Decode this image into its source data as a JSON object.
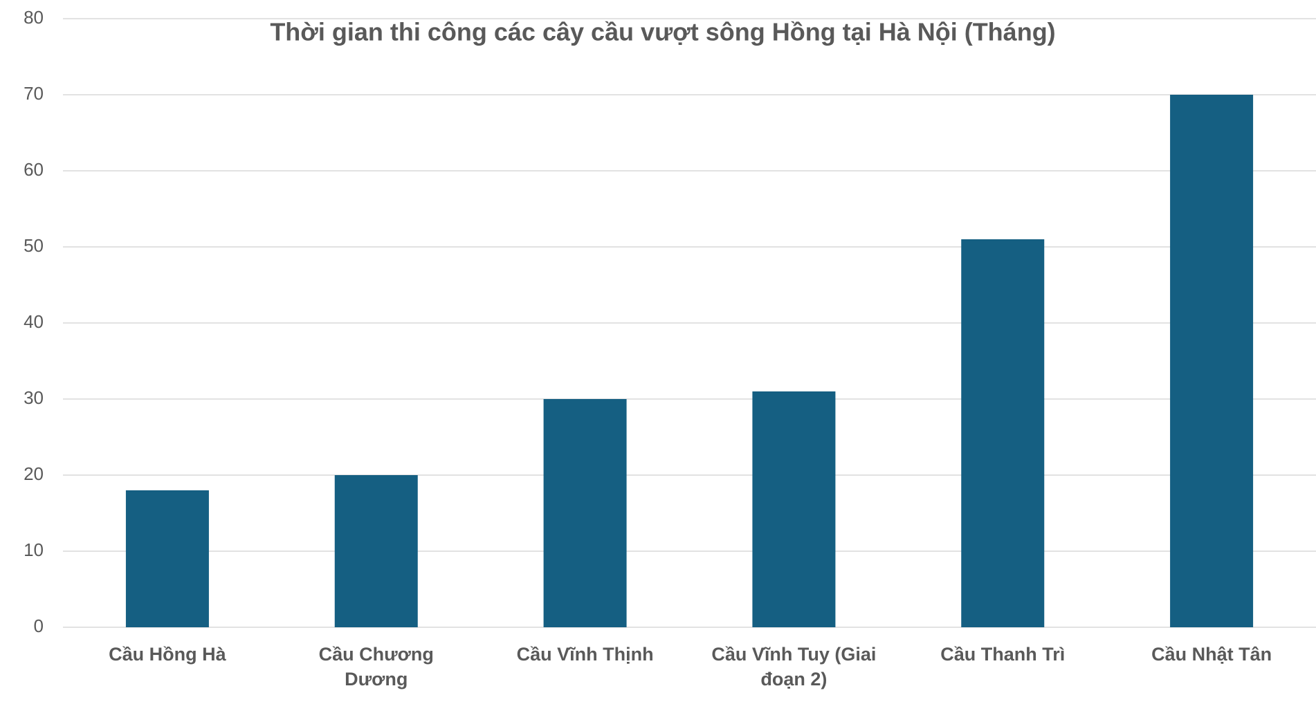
{
  "chart_data": {
    "type": "bar",
    "title": "Thời gian thi công các cây cầu vượt sông Hồng tại Hà Nội (Tháng)",
    "categories": [
      "Cầu Hồng Hà",
      "Cầu Chương Dương",
      "Cầu Vĩnh Thịnh",
      "Cầu Vĩnh Tuy (Giai đoạn 2)",
      "Cầu Thanh Trì",
      "Cầu Nhật Tân"
    ],
    "values": [
      18,
      20,
      30,
      31,
      51,
      70
    ],
    "color": "#155f82",
    "ylim": [
      0,
      80
    ],
    "yticks": [
      0,
      10,
      20,
      30,
      40,
      50,
      60,
      70,
      80
    ],
    "grid": true
  }
}
